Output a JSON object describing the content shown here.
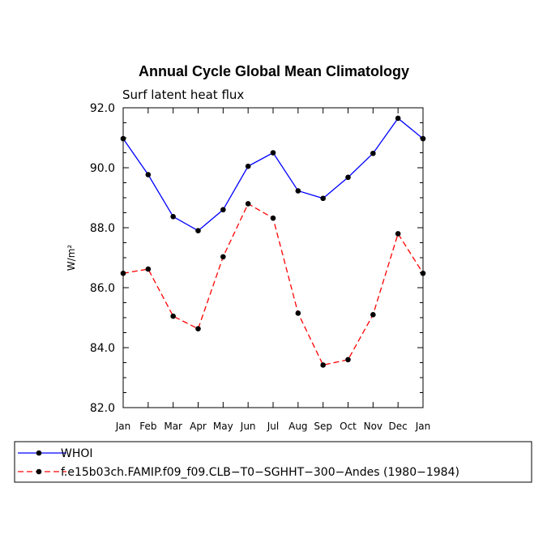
{
  "chart_data": {
    "type": "line",
    "title": "Annual Cycle Global Mean Climatology",
    "subtitle": "Surf latent heat flux",
    "xlabel": "",
    "ylabel": "W/m²",
    "ylim": [
      82.0,
      92.0
    ],
    "yticks": [
      "82.0",
      "84.0",
      "86.0",
      "88.0",
      "90.0",
      "92.0"
    ],
    "categories": [
      "Jan",
      "Feb",
      "Mar",
      "Apr",
      "May",
      "Jun",
      "Jul",
      "Aug",
      "Sep",
      "Oct",
      "Nov",
      "Dec",
      "Jan"
    ],
    "series": [
      {
        "name": "WHOI",
        "color": "#0000ff",
        "dash": "solid",
        "values": [
          90.97,
          89.77,
          88.37,
          87.9,
          88.6,
          90.05,
          90.5,
          89.23,
          88.98,
          89.68,
          90.48,
          91.65,
          90.97
        ]
      },
      {
        "name": "f.e15b03ch.FAMIP.f09_f09.CLB−T0−SGHHT−300−Andes (1980−1984)",
        "color": "#ff0000",
        "dash": "dashed",
        "values": [
          86.48,
          86.62,
          85.05,
          84.63,
          87.03,
          88.8,
          88.32,
          85.15,
          83.42,
          83.6,
          85.1,
          87.8,
          86.48
        ]
      }
    ],
    "grid": false,
    "legend": "bottom"
  }
}
